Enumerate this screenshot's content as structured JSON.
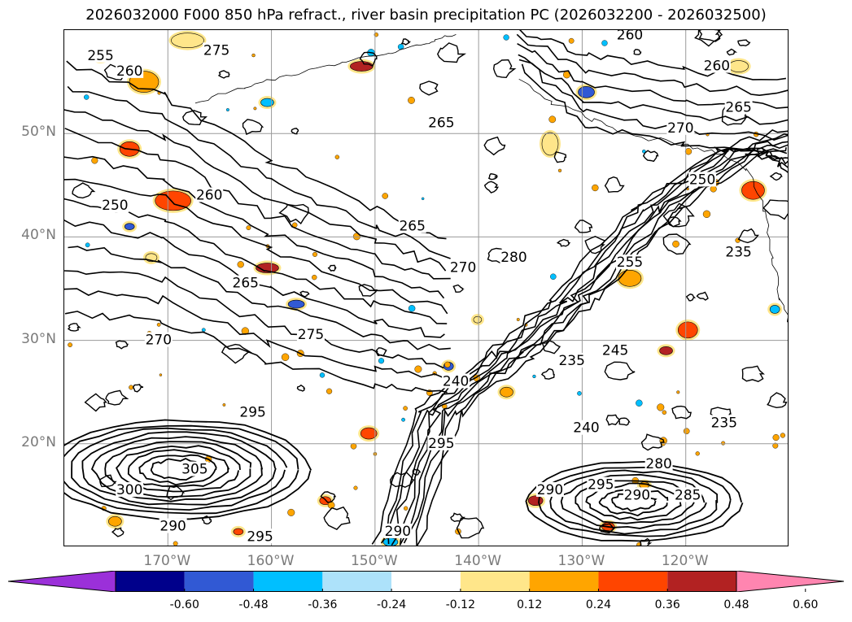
{
  "title": "2026032000 F000 850 hPa refract., river basin precipitation PC (2026032200 - 2026032500)",
  "lat_labels": [
    {
      "text": "50°N",
      "lat": 50
    },
    {
      "text": "40°N",
      "lat": 40
    },
    {
      "text": "30°N",
      "lat": 30
    },
    {
      "text": "20°N",
      "lat": 20
    }
  ],
  "lon_labels": [
    {
      "text": "170°W",
      "lon": -170
    },
    {
      "text": "160°W",
      "lon": -160
    },
    {
      "text": "150°W",
      "lon": -150
    },
    {
      "text": "140°W",
      "lon": -140
    },
    {
      "text": "130°W",
      "lon": -130
    },
    {
      "text": "120°W",
      "lon": -120
    }
  ],
  "extent": {
    "lon_min": -180,
    "lon_max": -110,
    "lat_min": 10,
    "lat_max": 60
  },
  "colorbar": {
    "ticks": [
      "-0.60",
      "-0.48",
      "-0.36",
      "-0.24",
      "-0.12",
      "0.12",
      "0.24",
      "0.36",
      "0.48",
      "0.60"
    ],
    "colors": [
      "#9b30d9",
      "#00008b",
      "#3159d4",
      "#00bfff",
      "#ade2fa",
      "#ffffff",
      "#ffe68a",
      "#ffa500",
      "#ff4500",
      "#b22222",
      "#ff85b0"
    ]
  },
  "contour_labels": [
    {
      "text": "275"
    },
    {
      "text": "260"
    },
    {
      "text": "255"
    },
    {
      "text": "260"
    },
    {
      "text": "265"
    },
    {
      "text": "250"
    },
    {
      "text": "260"
    },
    {
      "text": "265"
    },
    {
      "text": "265"
    },
    {
      "text": "270"
    },
    {
      "text": "280"
    },
    {
      "text": "270"
    },
    {
      "text": "275"
    },
    {
      "text": "240"
    },
    {
      "text": "235"
    },
    {
      "text": "245"
    },
    {
      "text": "235"
    },
    {
      "text": "250"
    },
    {
      "text": "255"
    },
    {
      "text": "235"
    },
    {
      "text": "295"
    },
    {
      "text": "305"
    },
    {
      "text": "300"
    },
    {
      "text": "290"
    },
    {
      "text": "295"
    },
    {
      "text": "290"
    },
    {
      "text": "295"
    },
    {
      "text": "280"
    },
    {
      "text": "290"
    },
    {
      "text": "285"
    },
    {
      "text": "295"
    },
    {
      "text": "240"
    },
    {
      "text": "260"
    },
    {
      "text": "265"
    },
    {
      "text": "270"
    },
    {
      "text": "290"
    }
  ]
}
